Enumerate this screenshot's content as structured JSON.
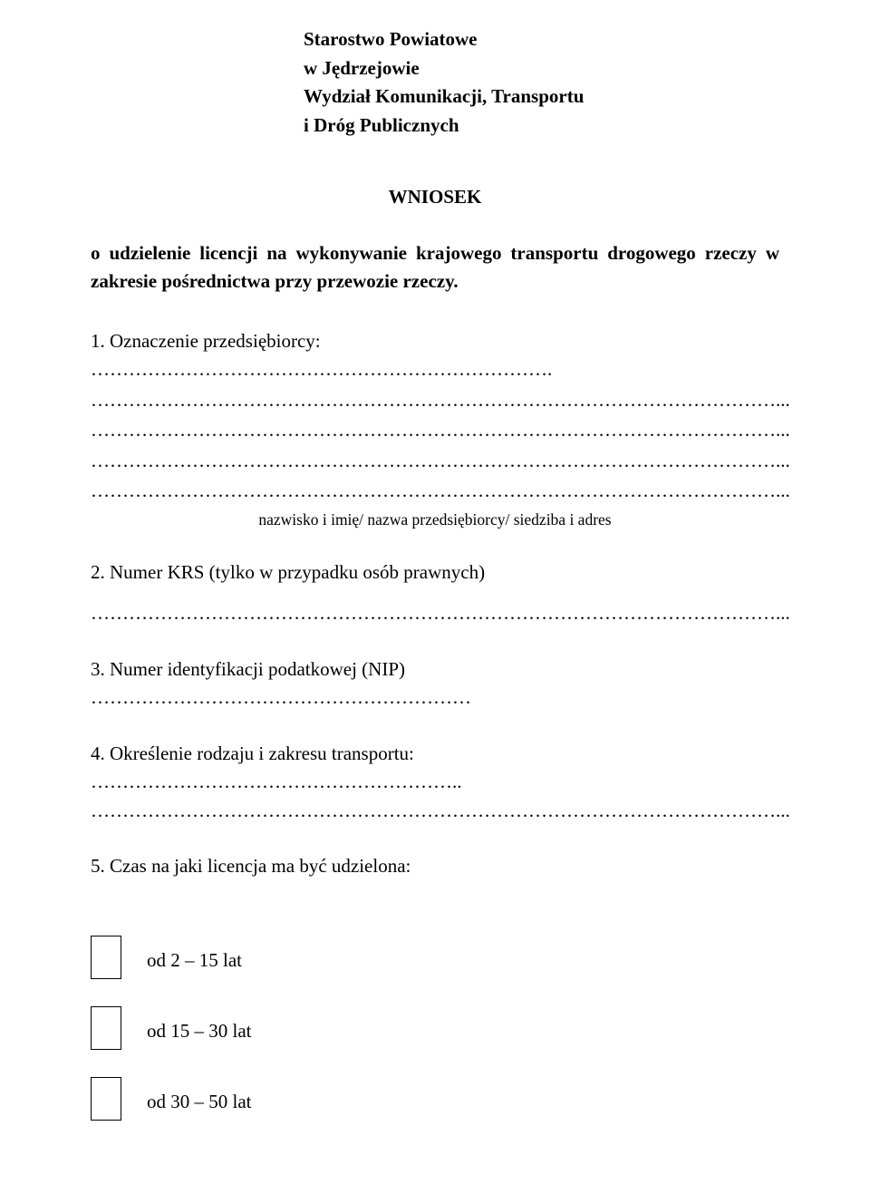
{
  "header": {
    "line1": "Starostwo Powiatowe",
    "line2": "w Jędrzejowie",
    "line3": "Wydział Komunikacji, Transportu",
    "line4": "i Dróg Publicznych"
  },
  "title": "WNIOSEK",
  "intro": "o udzielenie licencji na wykonywanie krajowego transportu drogowego rzeczy w zakresie pośrednictwa przy przewozie rzeczy.",
  "q1": {
    "label": "1. Oznaczenie przedsiębiorcy: ……………………………………………………………….",
    "dots2": "………………………………………………………………………………………………...",
    "dots3": "………………………………………………………………………………………………...",
    "dots4": "………………………………………………………………………………………………...",
    "dots5": "………………………………………………………………………………………………...",
    "caption": "nazwisko i imię/ nazwa przedsiębiorcy/ siedziba i adres"
  },
  "q2": {
    "label": "2. Numer KRS (tylko w przypadku osób prawnych)",
    "dots": "………………………………………………………………………………………………..."
  },
  "q3": {
    "label": "3. Numer identyfikacji podatkowej (NIP) ……………………………………………………"
  },
  "q4": {
    "label": "4. Określenie rodzaju i zakresu transportu: …………………………………………………..",
    "dots": "………………………………………………………………………………………………..."
  },
  "q5": {
    "label": " 5. Czas na jaki licencja ma być udzielona:"
  },
  "options": {
    "opt1": "od 2 – 15 lat",
    "opt2": "od 15 – 30 lat",
    "opt3": "od 30 – 50 lat"
  }
}
